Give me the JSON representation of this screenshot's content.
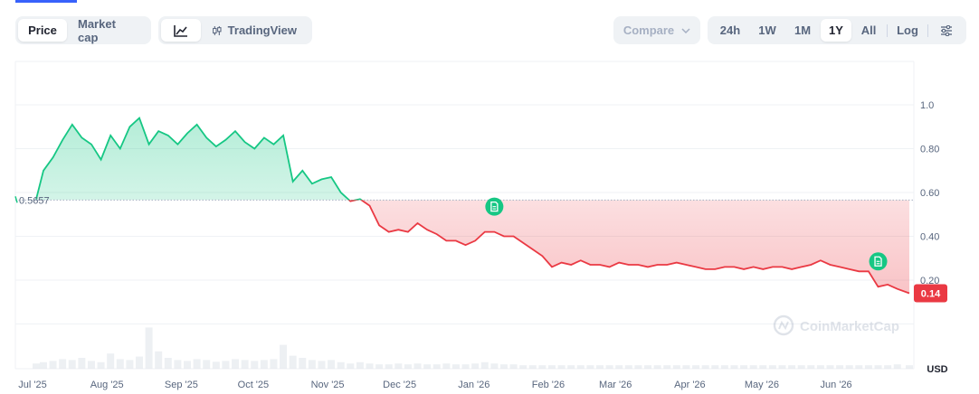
{
  "toolbar": {
    "metric_tabs": [
      "Price",
      "Market cap"
    ],
    "active_metric": "Price",
    "chart_type_tabs": [
      {
        "label": "",
        "icon": "line-chart-icon"
      },
      {
        "label": "TradingView",
        "icon": "candlestick-icon"
      }
    ],
    "compare_label": "Compare",
    "range_tabs": [
      "24h",
      "1W",
      "1M",
      "1Y",
      "All"
    ],
    "active_range": "1Y",
    "log_label": "Log",
    "settings_icon": "sliders-icon"
  },
  "colors": {
    "up": "#16c784",
    "down": "#ea3943",
    "accent": "#3861fb",
    "badge_green": "#16c784",
    "current_badge": "#ea3943"
  },
  "chart_data": {
    "type": "area",
    "x_ticks": [
      "Jul '25",
      "Aug '25",
      "Sep '25",
      "Oct '25",
      "Nov '25",
      "Dec '25",
      "Jan '26",
      "Feb '26",
      "Mar '26",
      "Apr '26",
      "May '26",
      "Jun '26"
    ],
    "y_ticks": [
      "1.0",
      "0.80",
      "0.60",
      "0.40",
      "0.20"
    ],
    "ylim": [
      0,
      1.2
    ],
    "baseline": 0.5657,
    "baseline_label": "0.5657",
    "current_price_label": "0.14",
    "y_unit": "USD",
    "watermark": "CoinMarketCap",
    "x": [
      "2025-07-01",
      "2025-07-04",
      "2025-07-08",
      "2025-07-12",
      "2025-07-16",
      "2025-07-20",
      "2025-07-24",
      "2025-07-28",
      "2025-08-01",
      "2025-08-05",
      "2025-08-09",
      "2025-08-13",
      "2025-08-17",
      "2025-08-21",
      "2025-08-25",
      "2025-08-29",
      "2025-09-02",
      "2025-09-06",
      "2025-09-10",
      "2025-09-14",
      "2025-09-18",
      "2025-09-22",
      "2025-09-26",
      "2025-09-30",
      "2025-10-04",
      "2025-10-08",
      "2025-10-12",
      "2025-10-16",
      "2025-10-20",
      "2025-10-24",
      "2025-10-28",
      "2025-11-01",
      "2025-11-05",
      "2025-11-09",
      "2025-11-13",
      "2025-11-17",
      "2025-11-21",
      "2025-11-25",
      "2025-11-29",
      "2025-12-03",
      "2025-12-07",
      "2025-12-11",
      "2025-12-15",
      "2025-12-19",
      "2025-12-23",
      "2025-12-27",
      "2025-12-31",
      "2026-01-04",
      "2026-01-08",
      "2026-01-12",
      "2026-01-16",
      "2026-01-20",
      "2026-01-24",
      "2026-01-28",
      "2026-02-01",
      "2026-02-05",
      "2026-02-09",
      "2026-02-13",
      "2026-02-17",
      "2026-02-21",
      "2026-02-25",
      "2026-03-01",
      "2026-03-05",
      "2026-03-09",
      "2026-03-13",
      "2026-03-17",
      "2026-03-21",
      "2026-03-25",
      "2026-03-29",
      "2026-04-02",
      "2026-04-06",
      "2026-04-10",
      "2026-04-14",
      "2026-04-18",
      "2026-04-22",
      "2026-04-26",
      "2026-04-30",
      "2026-05-04",
      "2026-05-08",
      "2026-05-12",
      "2026-05-16",
      "2026-05-20",
      "2026-05-24",
      "2026-05-28",
      "2026-06-01",
      "2026-06-05",
      "2026-06-09",
      "2026-06-13",
      "2026-06-17",
      "2026-06-21",
      "2026-06-25",
      "2026-06-30"
    ],
    "y": [
      0.57,
      0.7,
      0.76,
      0.84,
      0.91,
      0.85,
      0.82,
      0.75,
      0.86,
      0.8,
      0.9,
      0.94,
      0.82,
      0.88,
      0.86,
      0.82,
      0.87,
      0.91,
      0.85,
      0.81,
      0.84,
      0.88,
      0.83,
      0.8,
      0.85,
      0.82,
      0.86,
      0.65,
      0.7,
      0.64,
      0.66,
      0.67,
      0.6,
      0.56,
      0.57,
      0.54,
      0.45,
      0.42,
      0.43,
      0.42,
      0.46,
      0.43,
      0.41,
      0.38,
      0.38,
      0.36,
      0.38,
      0.42,
      0.42,
      0.4,
      0.4,
      0.37,
      0.34,
      0.31,
      0.26,
      0.28,
      0.27,
      0.29,
      0.27,
      0.27,
      0.26,
      0.28,
      0.27,
      0.27,
      0.26,
      0.27,
      0.27,
      0.28,
      0.27,
      0.26,
      0.25,
      0.25,
      0.26,
      0.26,
      0.25,
      0.26,
      0.25,
      0.26,
      0.26,
      0.25,
      0.26,
      0.27,
      0.29,
      0.27,
      0.26,
      0.25,
      0.24,
      0.24,
      0.17,
      0.18,
      0.16,
      0.14
    ],
    "volume": [
      0.12,
      0.15,
      0.18,
      0.22,
      0.2,
      0.25,
      0.18,
      0.15,
      0.35,
      0.22,
      0.2,
      0.28,
      0.95,
      0.4,
      0.25,
      0.2,
      0.18,
      0.22,
      0.2,
      0.16,
      0.18,
      0.22,
      0.2,
      0.18,
      0.2,
      0.22,
      0.55,
      0.3,
      0.25,
      0.2,
      0.18,
      0.2,
      0.15,
      0.12,
      0.15,
      0.12,
      0.1,
      0.1,
      0.12,
      0.1,
      0.12,
      0.1,
      0.1,
      0.12,
      0.1,
      0.1,
      0.12,
      0.15,
      0.12,
      0.1,
      0.1,
      0.08,
      0.08,
      0.08,
      0.08,
      0.08,
      0.08,
      0.08,
      0.08,
      0.08,
      0.08,
      0.08,
      0.08,
      0.08,
      0.08,
      0.08,
      0.08,
      0.08,
      0.08,
      0.08,
      0.08,
      0.08,
      0.08,
      0.08,
      0.08,
      0.08,
      0.08,
      0.08,
      0.08,
      0.08,
      0.08,
      0.08,
      0.08,
      0.08,
      0.08,
      0.08,
      0.08,
      0.08,
      0.08,
      0.08,
      0.1,
      0.08
    ],
    "events": [
      {
        "date": "2026-01-08",
        "icon": "document-icon"
      },
      {
        "date": "2026-06-17",
        "icon": "document-icon"
      }
    ],
    "grid": true
  }
}
